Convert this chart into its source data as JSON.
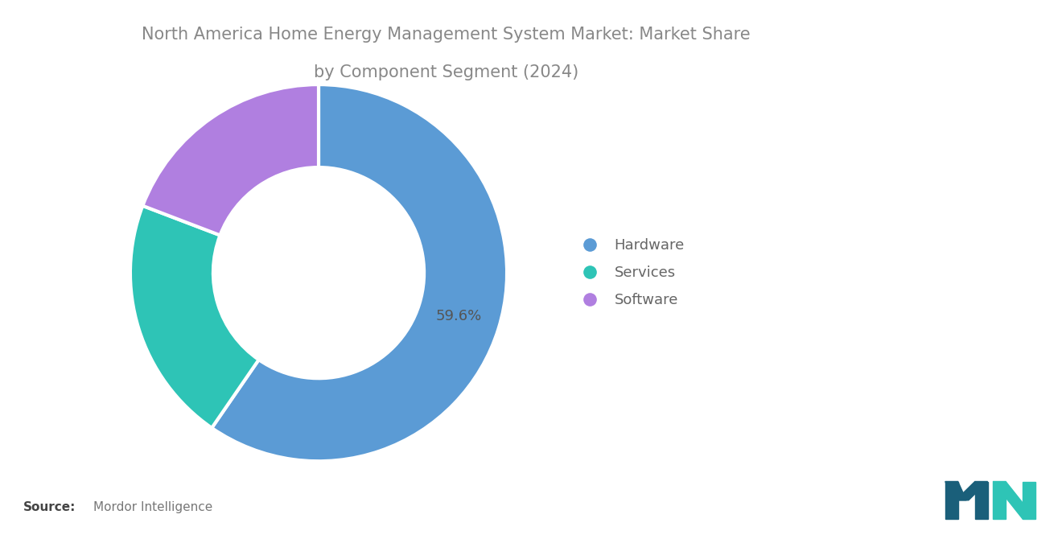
{
  "title_line1": "North America Home Energy Management System Market: Market Share",
  "title_line2": "by Component Segment (2024)",
  "title_color": "#888888",
  "title_fontsize": 15,
  "segments": [
    "Hardware",
    "Services",
    "Software"
  ],
  "values": [
    59.6,
    21.2,
    19.2
  ],
  "colors": [
    "#5B9BD5",
    "#2EC4B6",
    "#B07FE0"
  ],
  "label_text": "59.6%",
  "label_color": "#555555",
  "label_fontsize": 13,
  "source_bold": "Source:",
  "source_normal": "Mordor Intelligence",
  "source_fontsize": 11,
  "background_color": "#ffffff"
}
